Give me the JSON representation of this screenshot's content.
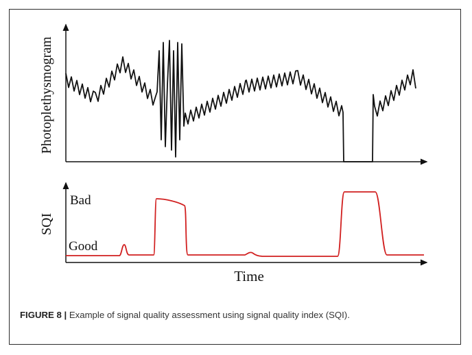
{
  "figure": {
    "ppg_axis_label": "Photoplethysmogram",
    "sqi_axis_label": "SQI",
    "sqi_level_bad": "Bad",
    "sqi_level_good": "Good",
    "time_axis_label": "Time",
    "sqi_color": "#d11f1f",
    "ppg_color": "#111111"
  },
  "caption": {
    "label": "FIGURE 8 |",
    "text": " Example of signal quality assessment using signal quality index (SQI)."
  }
}
